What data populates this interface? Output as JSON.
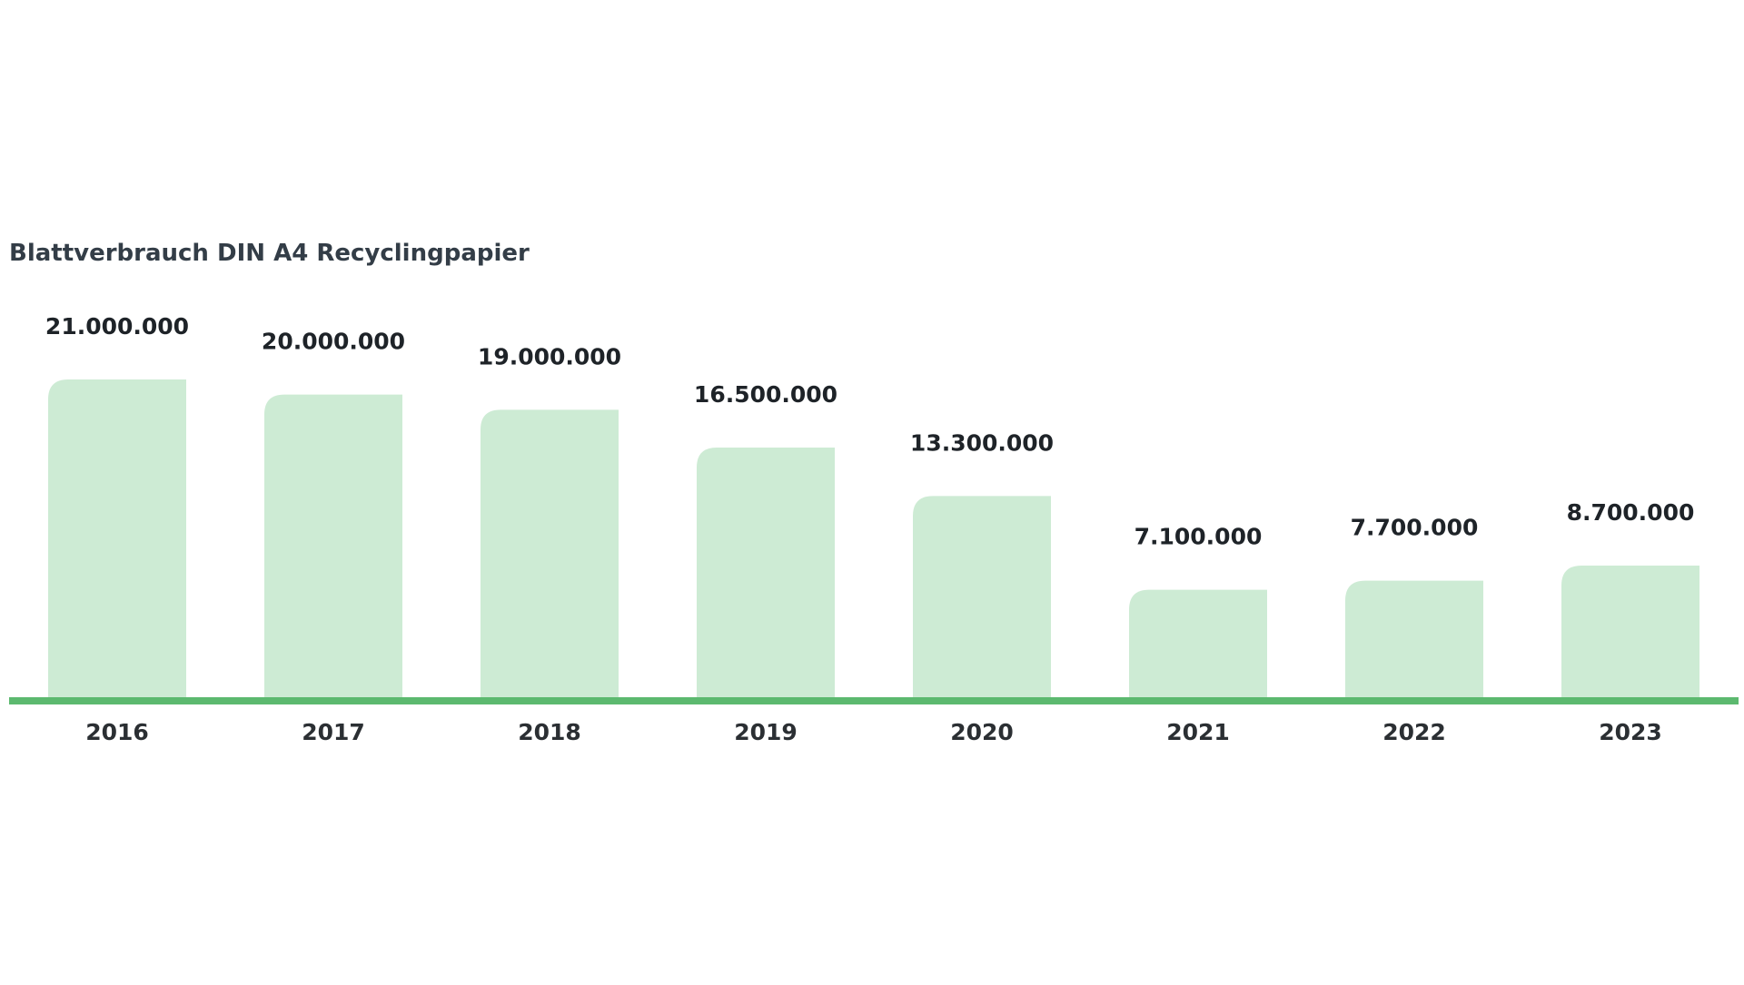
{
  "chart_data": {
    "type": "bar",
    "title": "Blattverbrauch DIN A4 Recyclingpapier",
    "categories": [
      "2016",
      "2017",
      "2018",
      "2019",
      "2020",
      "2021",
      "2022",
      "2023"
    ],
    "values": [
      21000000,
      20000000,
      19000000,
      16500000,
      13300000,
      7100000,
      7700000,
      8700000
    ],
    "value_labels": [
      "21.000.000",
      "20.000.000",
      "19.000.000",
      "16.500.000",
      "13.300.000",
      "7.100.000",
      "7.700.000",
      "8.700.000"
    ],
    "ylim": [
      0,
      21000000
    ],
    "grid": false,
    "legend": "none",
    "colors": {
      "bar": "#cdebd4",
      "baseline": "#5cb96f",
      "title": "#333d47",
      "label": "#1e2328"
    }
  }
}
